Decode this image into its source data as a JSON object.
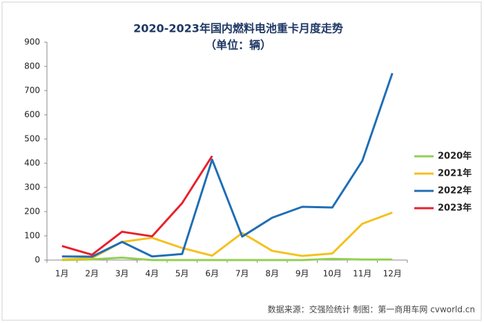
{
  "chart_data": {
    "type": "line",
    "title": "2020-2023年国内燃料电池重卡月度走势",
    "subtitle": "（单位：辆）",
    "source": "数据来源：交强险统计   制图：第一商用车网 cvworld.cn",
    "categories": [
      "1月",
      "2月",
      "3月",
      "4月",
      "5月",
      "6月",
      "7月",
      "8月",
      "9月",
      "10月",
      "11月",
      "12月"
    ],
    "series": [
      {
        "name": "2020年",
        "color": "#92d050",
        "values": [
          0,
          3,
          10,
          0,
          0,
          0,
          0,
          0,
          0,
          5,
          2,
          2
        ]
      },
      {
        "name": "2021年",
        "color": "#f5c01c",
        "values": [
          2,
          8,
          75,
          92,
          50,
          18,
          112,
          38,
          17,
          27,
          150,
          196
        ]
      },
      {
        "name": "2022年",
        "color": "#1f6eb5",
        "values": [
          15,
          14,
          75,
          15,
          25,
          415,
          97,
          175,
          220,
          217,
          410,
          772
        ]
      },
      {
        "name": "2023年",
        "color": "#e8202a",
        "values": [
          58,
          22,
          117,
          98,
          235,
          430,
          null,
          null,
          null,
          null,
          null,
          null
        ]
      }
    ],
    "ylim": [
      0,
      900
    ],
    "yticks": [
      0,
      100,
      200,
      300,
      400,
      500,
      600,
      700,
      800,
      900
    ],
    "grid": false,
    "legend": "right"
  }
}
